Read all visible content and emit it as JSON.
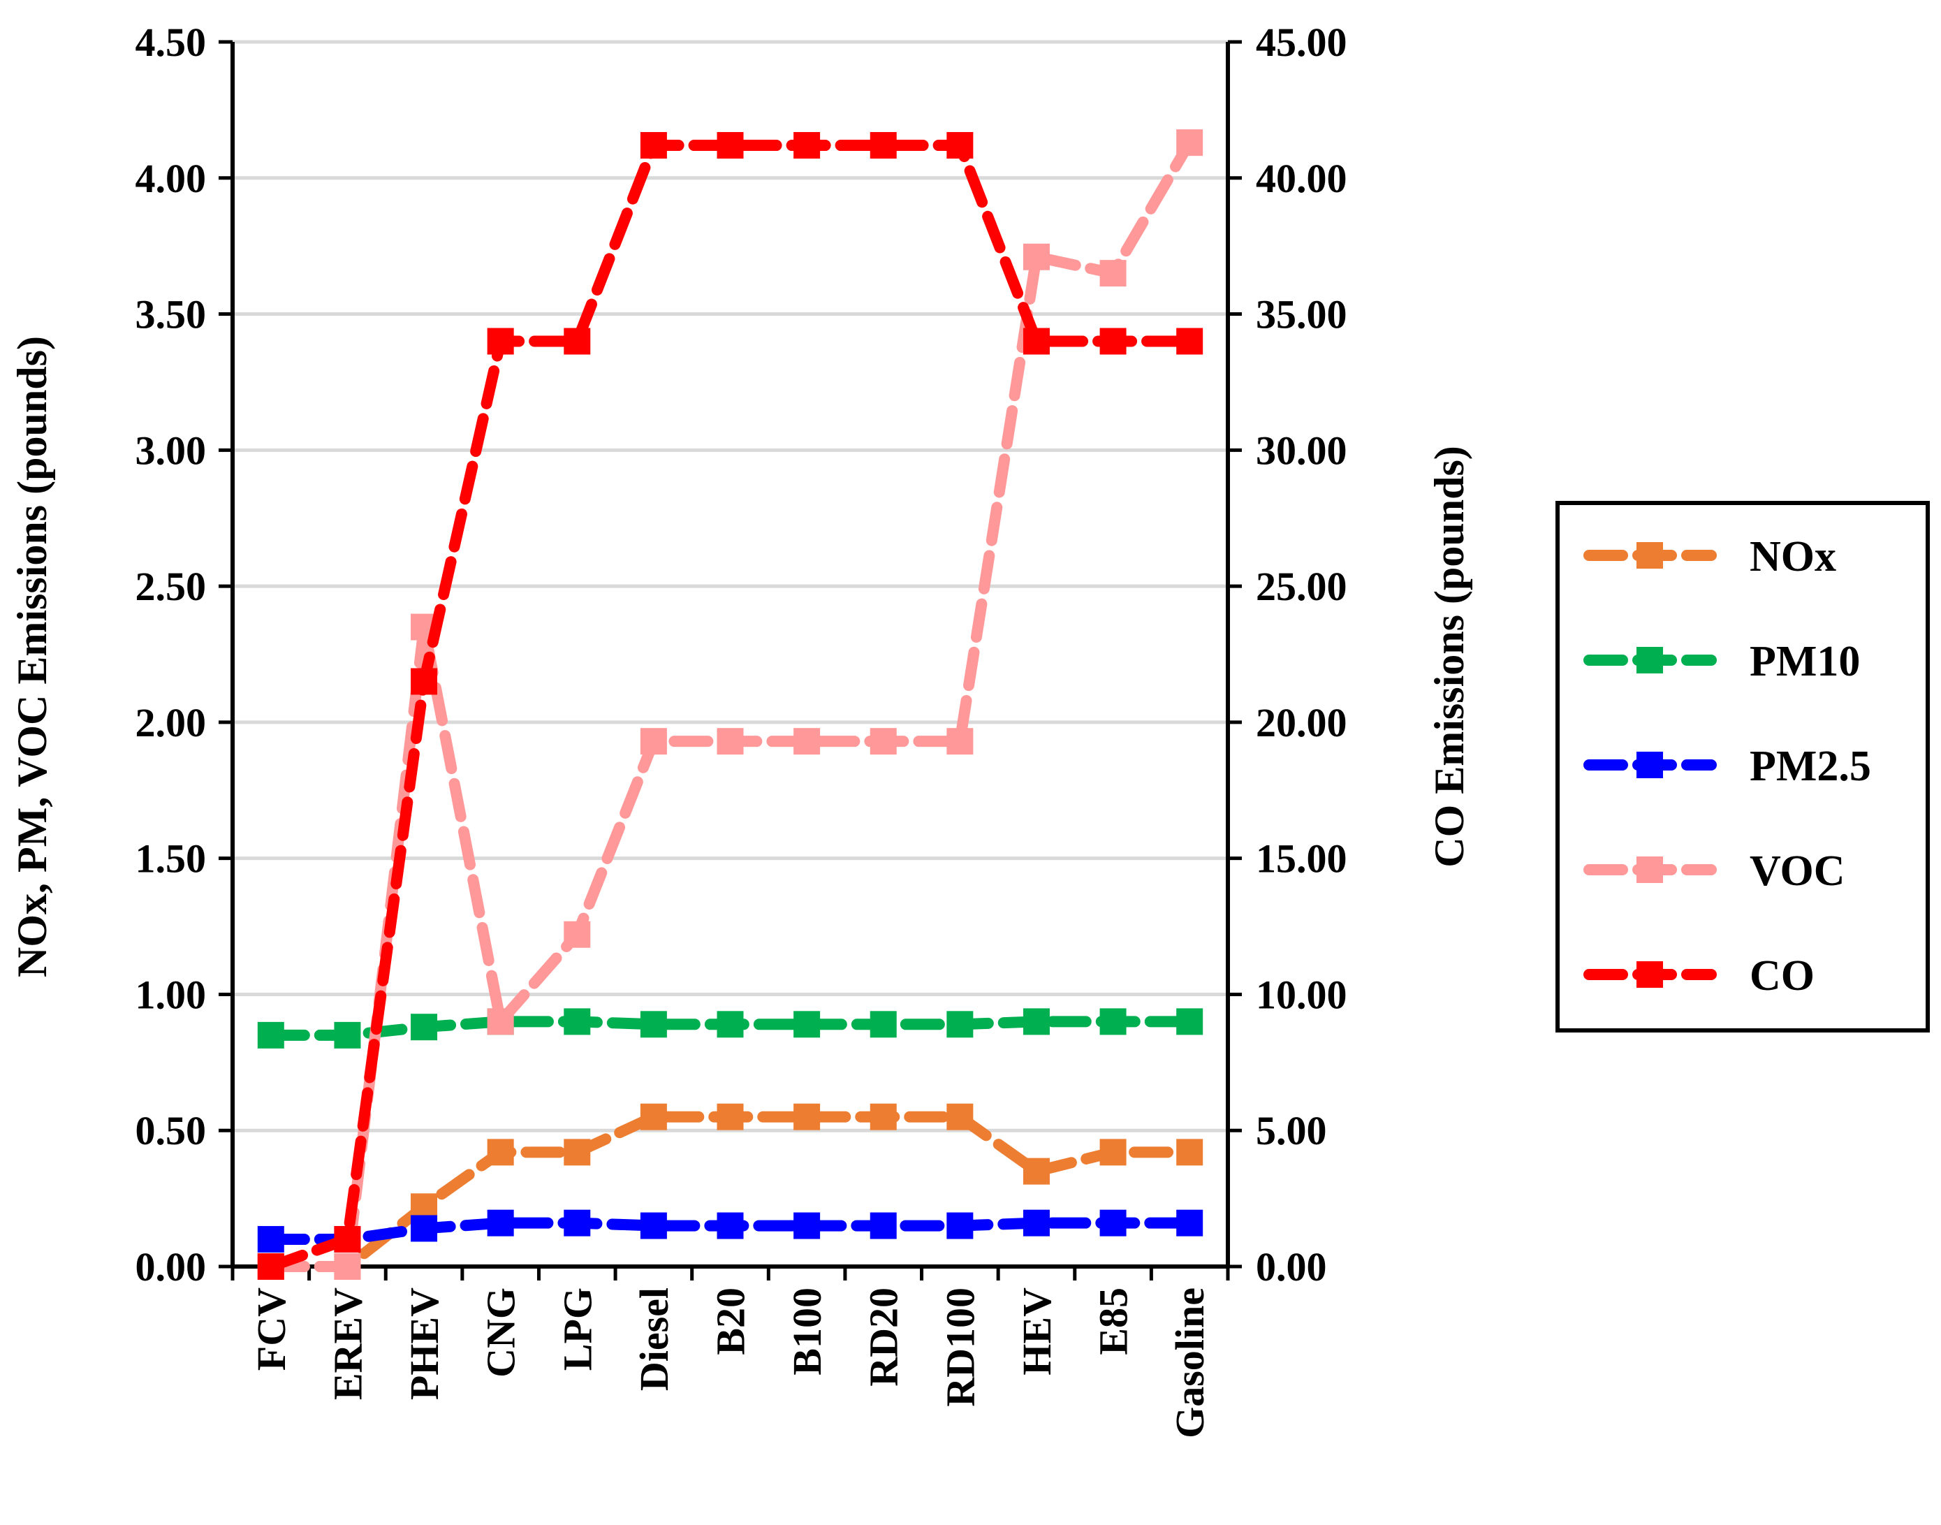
{
  "chart_data": {
    "type": "line",
    "title": "",
    "xlabel": "",
    "ylabel": "NOx, PM, VOC Emissions (pounds)",
    "y2label": "CO Emissions (pounds)",
    "ylim": [
      0,
      4.5
    ],
    "y2lim": [
      0,
      45
    ],
    "y_ticks": [
      "0.00",
      "0.50",
      "1.00",
      "1.50",
      "2.00",
      "2.50",
      "3.00",
      "3.50",
      "4.00",
      "4.50"
    ],
    "y2_ticks": [
      "0.00",
      "5.00",
      "10.00",
      "15.00",
      "20.00",
      "25.00",
      "30.00",
      "35.00",
      "40.00",
      "45.00"
    ],
    "grid": "horizontal",
    "legend_position": "right",
    "categories": [
      "FCV",
      "EREV",
      "PHEV",
      "CNG",
      "LPG",
      "Diesel",
      "B20",
      "B100",
      "RD20",
      "RD100",
      "HEV",
      "E85",
      "Gasoline"
    ],
    "series": [
      {
        "name": "NOx",
        "axis": "left",
        "color": "#ED7D31",
        "values": [
          0.0,
          0.0,
          0.22,
          0.42,
          0.42,
          0.55,
          0.55,
          0.55,
          0.55,
          0.55,
          0.35,
          0.42,
          0.42
        ]
      },
      {
        "name": "PM10",
        "axis": "left",
        "color": "#00B050",
        "values": [
          0.85,
          0.85,
          0.88,
          0.9,
          0.9,
          0.89,
          0.89,
          0.89,
          0.89,
          0.89,
          0.9,
          0.9,
          0.9
        ]
      },
      {
        "name": "PM2.5",
        "axis": "left",
        "color": "#0000FF",
        "values": [
          0.1,
          0.1,
          0.14,
          0.16,
          0.16,
          0.15,
          0.15,
          0.15,
          0.15,
          0.15,
          0.16,
          0.16,
          0.16
        ]
      },
      {
        "name": "VOC",
        "axis": "left",
        "color": "#FF9999",
        "values": [
          0.0,
          0.0,
          2.35,
          0.9,
          1.22,
          1.93,
          1.93,
          1.93,
          1.93,
          1.93,
          3.71,
          3.65,
          4.13
        ]
      },
      {
        "name": "CO",
        "axis": "right",
        "color": "#FF0000",
        "values": [
          0.0,
          1.0,
          21.5,
          34.0,
          34.0,
          41.2,
          41.2,
          41.2,
          41.2,
          41.2,
          34.0,
          34.0,
          34.0
        ]
      }
    ]
  }
}
